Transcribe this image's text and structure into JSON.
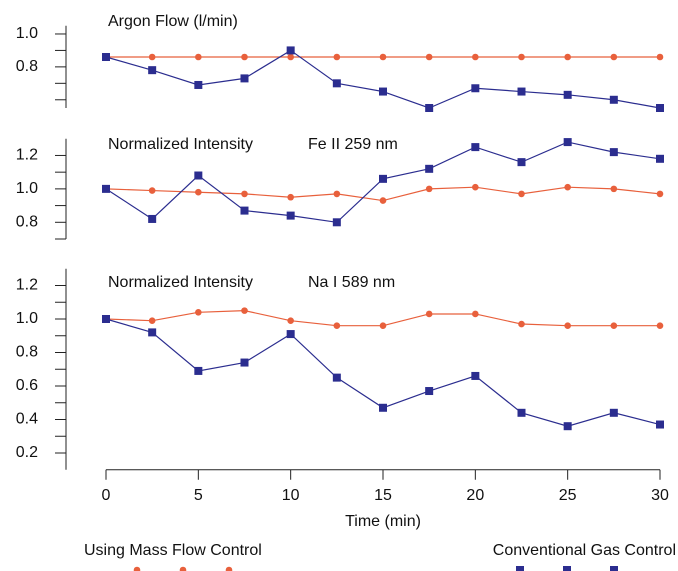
{
  "chart_data": [
    {
      "type": "line",
      "title": "Argon Flow (l/min)",
      "x": [
        0,
        2.5,
        5,
        7.5,
        10,
        12.5,
        15,
        17.5,
        20,
        22.5,
        25,
        27.5,
        30
      ],
      "series": [
        {
          "name": "Using Mass Flow Control",
          "color": "#e8603c",
          "marker": "circle",
          "values": [
            0.86,
            0.86,
            0.86,
            0.86,
            0.86,
            0.86,
            0.86,
            0.86,
            0.86,
            0.86,
            0.86,
            0.86,
            0.86
          ]
        },
        {
          "name": "Conventional Gas Control",
          "color": "#2b2d8f",
          "marker": "square",
          "values": [
            0.86,
            0.78,
            0.69,
            0.73,
            0.9,
            0.7,
            0.65,
            0.55,
            0.67,
            0.65,
            0.63,
            0.6,
            0.55
          ]
        }
      ],
      "ylim": [
        0.55,
        1.05
      ],
      "yticks": [
        0.8,
        {
          "value": 1.0,
          "label": "1.0"
        }
      ],
      "minor_yticks": [
        0.6,
        0.7,
        0.9
      ]
    },
    {
      "type": "line",
      "title": "Normalized Intensity",
      "subtitle": "Fe II 259 nm",
      "x": [
        0,
        2.5,
        5,
        7.5,
        10,
        12.5,
        15,
        17.5,
        20,
        22.5,
        25,
        27.5,
        30
      ],
      "series": [
        {
          "color": "#e8603c",
          "marker": "circle",
          "values": [
            1.0,
            0.99,
            0.98,
            0.97,
            0.95,
            0.97,
            0.93,
            1.0,
            1.01,
            0.97,
            1.01,
            1.0,
            0.97
          ]
        },
        {
          "color": "#2b2d8f",
          "marker": "square",
          "values": [
            1.0,
            0.82,
            1.08,
            0.87,
            0.84,
            0.8,
            1.06,
            1.12,
            1.25,
            1.16,
            1.28,
            1.22,
            1.18
          ]
        }
      ],
      "ylim": [
        0.7,
        1.3
      ],
      "yticks": [
        0.8,
        {
          "value": 1.0,
          "label": "1.0"
        },
        1.2
      ],
      "minor_yticks": [
        0.7,
        0.9,
        1.1
      ]
    },
    {
      "type": "line",
      "title": "Normalized Intensity",
      "subtitle": "Na I 589 nm",
      "x": [
        0,
        2.5,
        5,
        7.5,
        10,
        12.5,
        15,
        17.5,
        20,
        22.5,
        25,
        27.5,
        30
      ],
      "series": [
        {
          "color": "#e8603c",
          "marker": "circle",
          "values": [
            1.0,
            0.99,
            1.04,
            1.05,
            0.99,
            0.96,
            0.96,
            1.03,
            1.03,
            0.97,
            0.96,
            0.96,
            0.96
          ]
        },
        {
          "color": "#2b2d8f",
          "marker": "square",
          "values": [
            1.0,
            0.92,
            0.69,
            0.74,
            0.91,
            0.65,
            0.47,
            0.57,
            0.66,
            0.44,
            0.36,
            0.44,
            0.37
          ]
        }
      ],
      "ylim": [
        0.1,
        1.3
      ],
      "yticks": [
        0.2,
        0.4,
        0.6,
        0.8,
        {
          "value": 1.0,
          "label": "1.0"
        },
        1.2
      ],
      "minor_yticks": [
        0.3,
        0.5,
        0.7,
        0.9,
        1.1
      ],
      "xlim": [
        0,
        30
      ],
      "xticks": [
        0,
        5,
        10,
        15,
        20,
        25,
        30
      ],
      "xlabel": "Time (min)"
    }
  ]
}
